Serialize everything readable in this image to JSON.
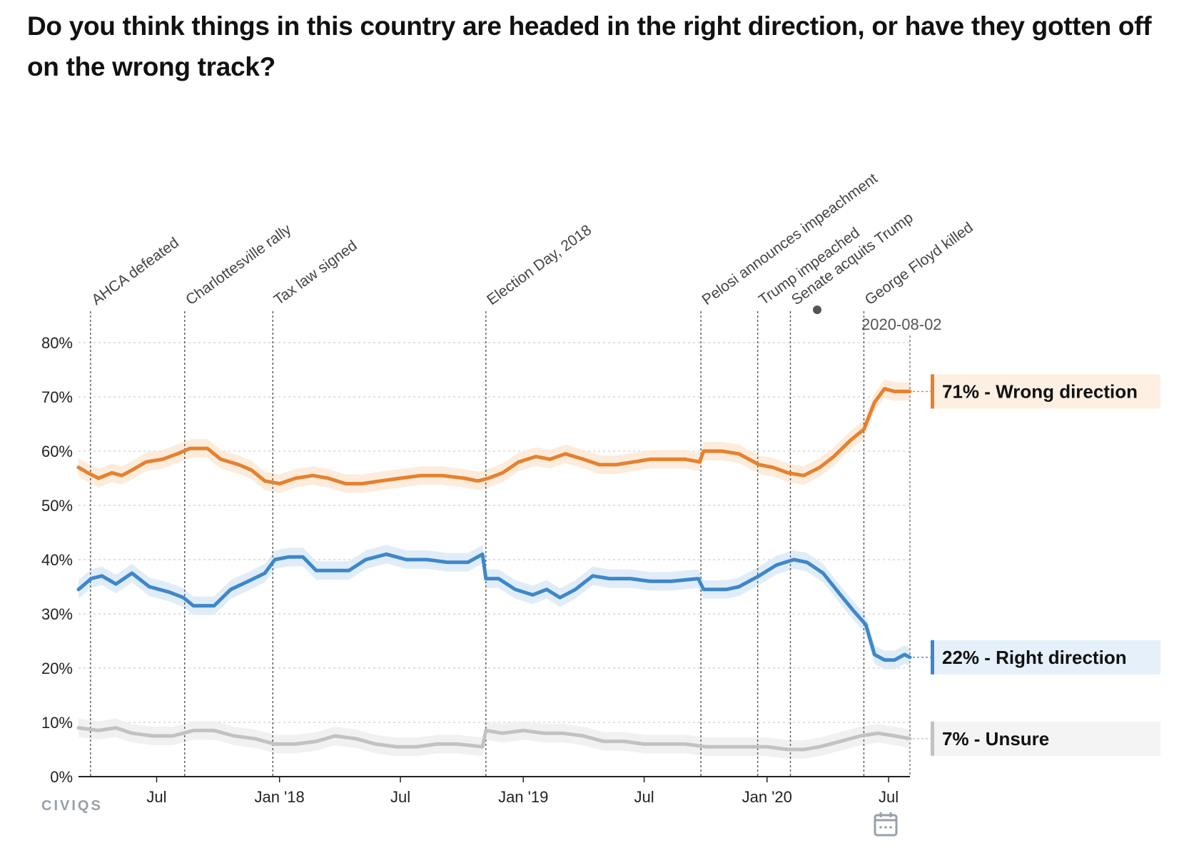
{
  "title": "Do you think things in this country are headed in the right direction, or have they gotten off on the wrong track?",
  "logo_text": "CIVIQS",
  "highlight_date": "2020-08-02",
  "colors": {
    "wrong": "#e6812f",
    "right": "#3e87cb",
    "unsure": "#c2c2c2",
    "wrong_band": "#fde9d6",
    "right_band": "#dbeaf7",
    "unsure_band": "#eeeeee",
    "wrong_label_bg": "#fdf0e3",
    "right_label_bg": "#e6f0fa",
    "unsure_label_bg": "#f4f4f4"
  },
  "chart_data": {
    "type": "line",
    "title": "Do you think things in this country are headed in the right direction, or have they gotten off on the wrong track?",
    "xlabel": "",
    "ylabel": "",
    "xlim": [
      "2017-03-06",
      "2020-08-02"
    ],
    "ylim": [
      0,
      80
    ],
    "y_ticks": [
      "0%",
      "10%",
      "20%",
      "30%",
      "40%",
      "50%",
      "60%",
      "70%",
      "80%"
    ],
    "x_ticks": [
      {
        "date": "2017-07-01",
        "label": "Jul"
      },
      {
        "date": "2018-01-01",
        "label": "Jan '18"
      },
      {
        "date": "2018-07-01",
        "label": "Jul"
      },
      {
        "date": "2019-01-01",
        "label": "Jan '19"
      },
      {
        "date": "2019-07-01",
        "label": "Jul"
      },
      {
        "date": "2020-01-01",
        "label": "Jan '20"
      },
      {
        "date": "2020-07-01",
        "label": "Jul"
      }
    ],
    "grid": true,
    "events": [
      {
        "date": "2017-03-24",
        "label": "AHCA defeated"
      },
      {
        "date": "2017-08-12",
        "label": "Charlottesville rally"
      },
      {
        "date": "2017-12-22",
        "label": "Tax law signed"
      },
      {
        "date": "2018-11-06",
        "label": "Election Day, 2018"
      },
      {
        "date": "2019-09-24",
        "label": "Pelosi announces impeachment"
      },
      {
        "date": "2019-12-18",
        "label": "Trump impeached"
      },
      {
        "date": "2020-02-05",
        "label": "Senate acquits Trump"
      },
      {
        "date": "2020-05-25",
        "label": "George Floyd killed"
      }
    ],
    "series": [
      {
        "key": "wrong",
        "end_label": "71% - Wrong direction",
        "points": [
          [
            "2017-03-06",
            57
          ],
          [
            "2017-03-20",
            56
          ],
          [
            "2017-04-05",
            55
          ],
          [
            "2017-04-25",
            56
          ],
          [
            "2017-05-10",
            55.5
          ],
          [
            "2017-05-25",
            56.5
          ],
          [
            "2017-06-15",
            58
          ],
          [
            "2017-07-10",
            58.5
          ],
          [
            "2017-08-01",
            59.5
          ],
          [
            "2017-08-20",
            60.5
          ],
          [
            "2017-09-15",
            60.5
          ],
          [
            "2017-10-05",
            58.5
          ],
          [
            "2017-11-01",
            57.5
          ],
          [
            "2017-11-20",
            56.5
          ],
          [
            "2017-12-10",
            54.5
          ],
          [
            "2018-01-01",
            54
          ],
          [
            "2018-01-25",
            55
          ],
          [
            "2018-02-20",
            55.5
          ],
          [
            "2018-03-15",
            55
          ],
          [
            "2018-04-10",
            54
          ],
          [
            "2018-05-05",
            54
          ],
          [
            "2018-06-01",
            54.5
          ],
          [
            "2018-07-01",
            55
          ],
          [
            "2018-08-01",
            55.5
          ],
          [
            "2018-09-01",
            55.5
          ],
          [
            "2018-10-05",
            55
          ],
          [
            "2018-10-25",
            54.5
          ],
          [
            "2018-11-10",
            55
          ],
          [
            "2018-12-01",
            56
          ],
          [
            "2018-12-25",
            58
          ],
          [
            "2019-01-20",
            59
          ],
          [
            "2019-02-10",
            58.5
          ],
          [
            "2019-03-05",
            59.5
          ],
          [
            "2019-04-01",
            58.5
          ],
          [
            "2019-04-25",
            57.5
          ],
          [
            "2019-05-20",
            57.5
          ],
          [
            "2019-06-15",
            58
          ],
          [
            "2019-07-10",
            58.5
          ],
          [
            "2019-08-05",
            58.5
          ],
          [
            "2019-09-01",
            58.5
          ],
          [
            "2019-09-22",
            58
          ],
          [
            "2019-09-28",
            60
          ],
          [
            "2019-10-25",
            60
          ],
          [
            "2019-11-20",
            59.5
          ],
          [
            "2019-12-20",
            57.5
          ],
          [
            "2020-01-10",
            57
          ],
          [
            "2020-02-01",
            56
          ],
          [
            "2020-02-25",
            55.5
          ],
          [
            "2020-03-20",
            57
          ],
          [
            "2020-04-10",
            59
          ],
          [
            "2020-05-05",
            62
          ],
          [
            "2020-05-25",
            64
          ],
          [
            "2020-06-10",
            69
          ],
          [
            "2020-06-25",
            71.5
          ],
          [
            "2020-07-10",
            71
          ],
          [
            "2020-08-02",
            71
          ]
        ]
      },
      {
        "key": "right",
        "end_label": "22% - Right direction",
        "points": [
          [
            "2017-03-06",
            34.5
          ],
          [
            "2017-03-25",
            36.5
          ],
          [
            "2017-04-10",
            37
          ],
          [
            "2017-05-01",
            35.5
          ],
          [
            "2017-05-25",
            37.5
          ],
          [
            "2017-06-20",
            35
          ],
          [
            "2017-07-20",
            34
          ],
          [
            "2017-08-10",
            33
          ],
          [
            "2017-08-25",
            31.5
          ],
          [
            "2017-09-25",
            31.5
          ],
          [
            "2017-10-20",
            34.5
          ],
          [
            "2017-11-15",
            36
          ],
          [
            "2017-12-10",
            37.5
          ],
          [
            "2017-12-25",
            40
          ],
          [
            "2018-01-15",
            40.5
          ],
          [
            "2018-02-05",
            40.5
          ],
          [
            "2018-02-25",
            38
          ],
          [
            "2018-03-20",
            38
          ],
          [
            "2018-04-15",
            38
          ],
          [
            "2018-05-10",
            40
          ],
          [
            "2018-06-10",
            41
          ],
          [
            "2018-07-10",
            40
          ],
          [
            "2018-08-10",
            40
          ],
          [
            "2018-09-10",
            39.5
          ],
          [
            "2018-10-10",
            39.5
          ],
          [
            "2018-11-01",
            41
          ],
          [
            "2018-11-06",
            36.5
          ],
          [
            "2018-11-25",
            36.5
          ],
          [
            "2018-12-20",
            34.5
          ],
          [
            "2019-01-15",
            33.5
          ],
          [
            "2019-02-05",
            34.5
          ],
          [
            "2019-02-25",
            33
          ],
          [
            "2019-03-20",
            34.5
          ],
          [
            "2019-04-15",
            37
          ],
          [
            "2019-05-10",
            36.5
          ],
          [
            "2019-06-10",
            36.5
          ],
          [
            "2019-07-10",
            36
          ],
          [
            "2019-08-10",
            36
          ],
          [
            "2019-09-20",
            36.5
          ],
          [
            "2019-09-28",
            34.5
          ],
          [
            "2019-11-01",
            34.5
          ],
          [
            "2019-11-20",
            35
          ],
          [
            "2019-12-20",
            37
          ],
          [
            "2020-01-15",
            39
          ],
          [
            "2020-02-10",
            40
          ],
          [
            "2020-03-01",
            39.5
          ],
          [
            "2020-03-25",
            37.5
          ],
          [
            "2020-04-20",
            33.5
          ],
          [
            "2020-05-10",
            30.5
          ],
          [
            "2020-05-28",
            28
          ],
          [
            "2020-06-10",
            22.5
          ],
          [
            "2020-06-25",
            21.5
          ],
          [
            "2020-07-10",
            21.5
          ],
          [
            "2020-07-25",
            22.5
          ],
          [
            "2020-08-02",
            22
          ]
        ]
      },
      {
        "key": "unsure",
        "end_label": "7% - Unsure",
        "points": [
          [
            "2017-03-06",
            9
          ],
          [
            "2017-04-05",
            8.5
          ],
          [
            "2017-05-01",
            9
          ],
          [
            "2017-05-25",
            8
          ],
          [
            "2017-06-25",
            7.5
          ],
          [
            "2017-07-25",
            7.5
          ],
          [
            "2017-08-25",
            8.5
          ],
          [
            "2017-09-25",
            8.5
          ],
          [
            "2017-10-25",
            7.5
          ],
          [
            "2017-11-25",
            7
          ],
          [
            "2017-12-25",
            6
          ],
          [
            "2018-01-25",
            6
          ],
          [
            "2018-02-25",
            6.5
          ],
          [
            "2018-03-25",
            7.5
          ],
          [
            "2018-04-25",
            7
          ],
          [
            "2018-05-25",
            6
          ],
          [
            "2018-06-25",
            5.5
          ],
          [
            "2018-07-25",
            5.5
          ],
          [
            "2018-08-25",
            6
          ],
          [
            "2018-09-25",
            6
          ],
          [
            "2018-11-01",
            5.5
          ],
          [
            "2018-11-06",
            8.5
          ],
          [
            "2018-12-01",
            8
          ],
          [
            "2019-01-01",
            8.5
          ],
          [
            "2019-02-01",
            8
          ],
          [
            "2019-03-01",
            8
          ],
          [
            "2019-04-01",
            7.5
          ],
          [
            "2019-05-01",
            6.5
          ],
          [
            "2019-06-01",
            6.5
          ],
          [
            "2019-07-01",
            6
          ],
          [
            "2019-08-01",
            6
          ],
          [
            "2019-09-01",
            6
          ],
          [
            "2019-10-01",
            5.5
          ],
          [
            "2019-11-01",
            5.5
          ],
          [
            "2019-12-01",
            5.5
          ],
          [
            "2020-01-01",
            5.5
          ],
          [
            "2020-02-01",
            5
          ],
          [
            "2020-02-25",
            5
          ],
          [
            "2020-03-20",
            5.5
          ],
          [
            "2020-04-20",
            6.5
          ],
          [
            "2020-05-20",
            7.5
          ],
          [
            "2020-06-15",
            8
          ],
          [
            "2020-07-10",
            7.5
          ],
          [
            "2020-08-02",
            7
          ]
        ]
      }
    ]
  }
}
